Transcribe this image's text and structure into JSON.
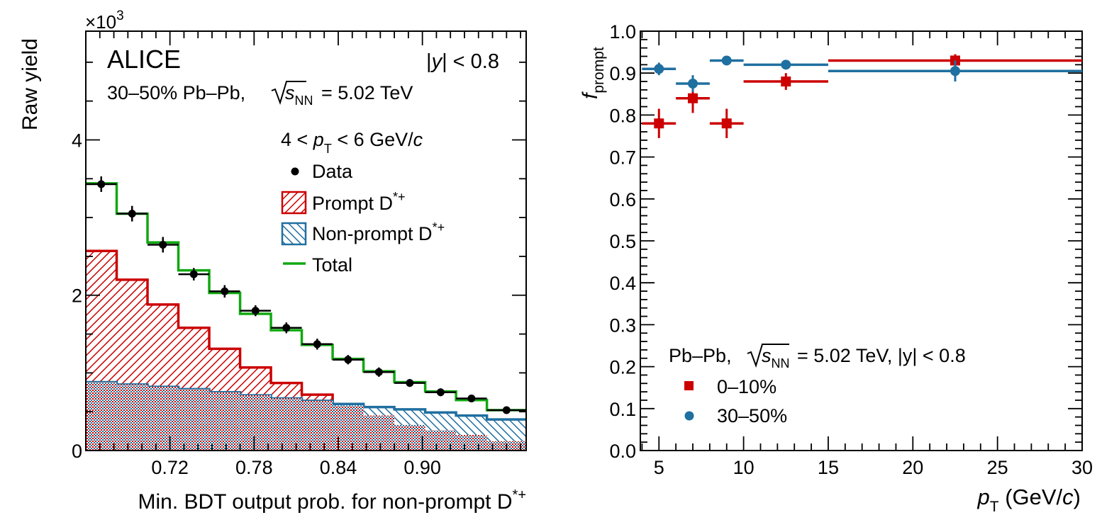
{
  "colors": {
    "prompt": "#cc0000",
    "nonprompt": "#1f6fa0",
    "total": "#11a811",
    "data": "#000000",
    "cent_0_10": "#cc0000",
    "cent_30_50": "#1f6fa0"
  },
  "chart_data": [
    {
      "type": "histogram",
      "ylabel": "Raw yield",
      "xlabel": "Min. BDT output prob. for non-prompt D*+",
      "xlabel_main": "Min. BDT output prob. for non-prompt D",
      "xlabel_sup": "*+",
      "yscale_label": "×10",
      "yscale_exp": "3",
      "xlim": [
        0.66,
        0.974
      ],
      "ylim": [
        0,
        5.4
      ],
      "xticks": [
        0.72,
        0.78,
        0.84,
        0.9
      ],
      "xtick_labels": [
        "0.72",
        "0.78",
        "0.84",
        "0.90"
      ],
      "yticks": [
        0,
        2,
        4
      ],
      "ytick_labels": [
        "0",
        "2",
        "4"
      ],
      "annotations": {
        "experiment": "ALICE",
        "rapidity": "|y| < 0.8",
        "system_prefix": "30–50% Pb–Pb,",
        "system_energy": "= 5.02 TeV",
        "pt_range": "4 < pT < 6 GeV/c"
      },
      "legend": {
        "position": "top-center",
        "entries": [
          "Data",
          "Prompt D*+",
          "Non-prompt D*+",
          "Total"
        ]
      },
      "bin_edges": [
        0.66,
        0.682,
        0.704,
        0.726,
        0.748,
        0.77,
        0.792,
        0.814,
        0.836,
        0.858,
        0.88,
        0.902,
        0.924,
        0.946,
        0.974
      ],
      "series": [
        {
          "name": "Data",
          "values": [
            3.43,
            3.05,
            2.65,
            2.27,
            2.05,
            1.8,
            1.58,
            1.37,
            1.17,
            1.01,
            0.87,
            0.75,
            0.67,
            0.52
          ],
          "errors": [
            0.1,
            0.1,
            0.1,
            0.08,
            0.08,
            0.07,
            0.07,
            0.07,
            0.06,
            0.06,
            0.05,
            0.05,
            0.04,
            0.04
          ]
        },
        {
          "name": "Prompt D*+",
          "values": [
            2.57,
            2.2,
            1.88,
            1.58,
            1.31,
            1.07,
            0.87,
            0.72,
            0.58,
            0.45,
            0.33,
            0.26,
            0.2,
            0.12
          ]
        },
        {
          "name": "Non-prompt D*+",
          "values": [
            0.88,
            0.85,
            0.82,
            0.79,
            0.75,
            0.71,
            0.67,
            0.64,
            0.6,
            0.56,
            0.53,
            0.49,
            0.45,
            0.4
          ]
        },
        {
          "name": "Total",
          "values": [
            3.44,
            3.05,
            2.68,
            2.32,
            2.03,
            1.76,
            1.55,
            1.36,
            1.18,
            1.02,
            0.88,
            0.76,
            0.65,
            0.52
          ]
        }
      ]
    },
    {
      "type": "scatter",
      "ylabel": "fprompt",
      "xlabel": "pT (GeV/c)",
      "xlim": [
        3.9,
        30
      ],
      "ylim": [
        0,
        1.0
      ],
      "xticks": [
        5,
        10,
        15,
        20,
        25,
        30
      ],
      "xtick_labels": [
        "5",
        "10",
        "15",
        "20",
        "25",
        "30"
      ],
      "yticks": [
        0,
        0.1,
        0.2,
        0.3,
        0.4,
        0.5,
        0.6,
        0.7,
        0.8,
        0.9,
        1.0
      ],
      "ytick_labels": [
        "0.0",
        "0.1",
        "0.2",
        "0.3",
        "0.4",
        "0.5",
        "0.6",
        "0.7",
        "0.8",
        "0.9",
        "1.0"
      ],
      "annotations": {
        "system_prefix": "Pb–Pb,",
        "system_energy": "= 5.02 TeV, |y| < 0.8"
      },
      "legend": {
        "position": "bottom-left",
        "entries": [
          "0–10%",
          "30–50%"
        ]
      },
      "series": [
        {
          "name": "0–10%",
          "marker": "square",
          "x": [
            5,
            7,
            9,
            12.5,
            22.5
          ],
          "xlow": [
            4,
            6,
            8,
            10,
            15
          ],
          "xhigh": [
            6,
            8,
            10,
            15,
            30
          ],
          "y": [
            0.78,
            0.84,
            0.78,
            0.88,
            0.93
          ],
          "yerr": [
            0.035,
            0.035,
            0.035,
            0.02,
            0.015
          ]
        },
        {
          "name": "30–50%",
          "marker": "circle",
          "x": [
            5,
            7,
            9,
            12.5,
            22.5
          ],
          "xlow": [
            4,
            6,
            8,
            10,
            15
          ],
          "xhigh": [
            6,
            8,
            10,
            15,
            30
          ],
          "y": [
            0.91,
            0.875,
            0.93,
            0.92,
            0.905
          ],
          "yerr": [
            0.015,
            0.02,
            0.01,
            0.01,
            0.025
          ]
        }
      ]
    }
  ]
}
